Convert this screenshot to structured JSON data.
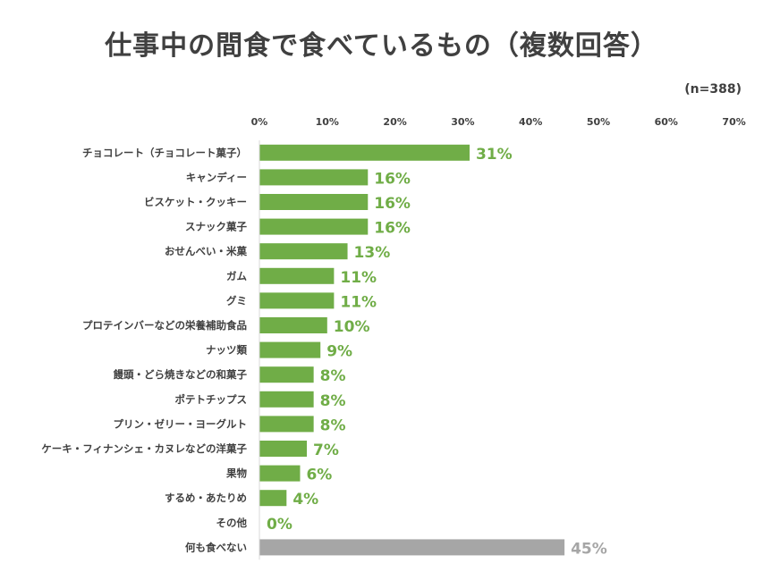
{
  "title": "仕事中の間食で食べているもの（複数回答）",
  "sample_note": "(n=388)",
  "colors": {
    "main_bar": "#70ad47",
    "last_bar": "#a6a6a6",
    "label_main": "#70ad47",
    "label_last": "#a6a6a6",
    "axis_line": "#d9d9d9",
    "text": "#404040"
  },
  "chart_data": {
    "type": "bar",
    "orientation": "horizontal",
    "title": "仕事中の間食で食べているもの（複数回答）",
    "xlim": [
      0,
      70
    ],
    "ticks": [
      "0%",
      "10%",
      "20%",
      "30%",
      "40%",
      "50%",
      "60%",
      "70%"
    ],
    "tick_values": [
      0,
      10,
      20,
      30,
      40,
      50,
      60,
      70
    ],
    "categories": [
      "チョコレート（チョコレート菓子）",
      "キャンディー",
      "ビスケット・クッキー",
      "スナック菓子",
      "おせんべい・米菓",
      "ガム",
      "グミ",
      "プロテインバーなどの栄養補助食品",
      "ナッツ類",
      "饅頭・どら焼きなどの和菓子",
      "ポテトチップス",
      "プリン・ゼリー・ヨーグルト",
      "ケーキ・フィナンシェ・カヌレなどの洋菓子",
      "果物",
      "するめ・あたりめ",
      "その他",
      "何も食べない"
    ],
    "values": [
      31,
      16,
      16,
      16,
      13,
      11,
      11,
      10,
      9,
      8,
      8,
      8,
      7,
      6,
      4,
      0,
      45
    ],
    "value_labels": [
      "31%",
      "16%",
      "16%",
      "16%",
      "13%",
      "11%",
      "11%",
      "10%",
      "9%",
      "8%",
      "8%",
      "8%",
      "7%",
      "6%",
      "4%",
      "0%",
      "45%"
    ],
    "grid": false,
    "legend": "none"
  }
}
